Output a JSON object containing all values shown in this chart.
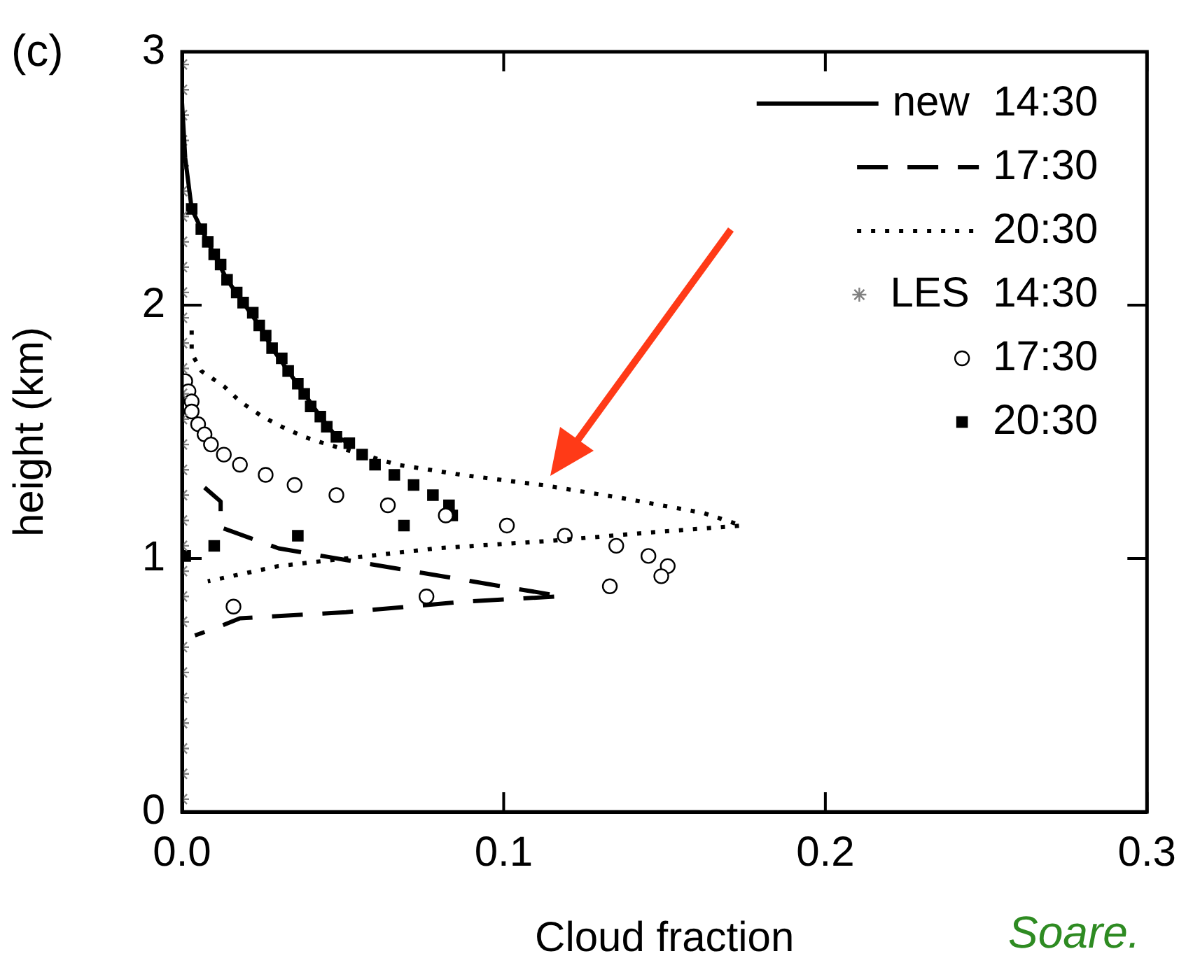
{
  "chart_data": {
    "type": "line",
    "xlabel": "Cloud fraction",
    "ylabel": "height (km)",
    "xlim": [
      0,
      0.3
    ],
    "xticks": [
      {
        "value": 0,
        "label": "0.0"
      },
      0.1,
      0.2,
      0.3
    ],
    "ylim": [
      0,
      3
    ],
    "yticks": [
      0,
      1,
      2,
      3
    ],
    "grid": false,
    "legend": "top right",
    "annotations": [
      "(c)",
      "Soare."
    ],
    "series": [
      {
        "name": "new  14:30",
        "line_style": "solid",
        "marker": "none",
        "color": "#000000",
        "x": [
          0,
          0.001,
          0.003,
          0.006,
          0.01,
          0.014,
          0.019,
          0.024,
          0.028,
          0.033,
          0.038,
          0.043,
          0.048,
          0.052
        ],
        "values": [
          2.8,
          2.58,
          2.38,
          2.3,
          2.2,
          2.1,
          2.01,
          1.92,
          1.83,
          1.74,
          1.65,
          1.56,
          1.48,
          1.455
        ]
      },
      {
        "name": "17:30",
        "line_style": "dashed",
        "marker": "none",
        "color": "#000000",
        "x": [
          0.007,
          0.012,
          0.012,
          0.03,
          0.051,
          0.072,
          0.098,
          0.118,
          0.087,
          0.051,
          0.018,
          0.011,
          0.004
        ],
        "values": [
          1.28,
          1.225,
          1.123,
          1.04,
          0.994,
          0.949,
          0.893,
          0.851,
          0.829,
          0.788,
          0.764,
          0.728,
          0.696
        ]
      },
      {
        "name": "20:30",
        "line_style": "dotted",
        "marker": "none",
        "color": "#000000",
        "x": [
          0.003,
          0.003,
          0.006,
          0.013,
          0.018,
          0.025,
          0.031,
          0.038,
          0.044,
          0.067,
          0.087,
          0.112,
          0.136,
          0.162,
          0.174,
          0.143,
          0.115,
          0.079,
          0.051,
          0.03,
          0.008
        ],
        "values": [
          1.9,
          1.81,
          1.74,
          1.68,
          1.62,
          1.56,
          1.52,
          1.48,
          1.455,
          1.37,
          1.33,
          1.29,
          1.24,
          1.18,
          1.13,
          1.1,
          1.07,
          1.04,
          1.0,
          0.97,
          0.91
        ]
      },
      {
        "name": "LES  14:30",
        "type": "scatter",
        "marker": "cross",
        "color": "#808080",
        "x": [
          0,
          0,
          0,
          0,
          0,
          0,
          0,
          0,
          0,
          0,
          0,
          0,
          0,
          0,
          0,
          0,
          0,
          0,
          0,
          0,
          0,
          0,
          0,
          0,
          0,
          0,
          0,
          0,
          0,
          0
        ],
        "values": [
          0.05,
          0.15,
          0.25,
          0.35,
          0.45,
          0.55,
          0.65,
          0.75,
          0.85,
          0.95,
          1.05,
          1.15,
          1.25,
          1.35,
          1.45,
          1.55,
          1.65,
          1.75,
          1.85,
          1.95,
          2.05,
          2.15,
          2.25,
          2.35,
          2.45,
          2.55,
          2.65,
          2.75,
          2.85,
          2.95
        ]
      },
      {
        "name": "17:30",
        "type": "scatter",
        "marker": "circle",
        "color": "#000000",
        "x": [
          0.001,
          0.002,
          0.003,
          0.003,
          0.005,
          0.007,
          0.009,
          0.013,
          0.018,
          0.026,
          0.035,
          0.048,
          0.064,
          0.082,
          0.101,
          0.119,
          0.135,
          0.145,
          0.151,
          0.149,
          0.133,
          0.076,
          0.016
        ],
        "values": [
          1.7,
          1.66,
          1.62,
          1.58,
          1.53,
          1.49,
          1.45,
          1.41,
          1.37,
          1.33,
          1.29,
          1.25,
          1.21,
          1.17,
          1.13,
          1.09,
          1.05,
          1.01,
          0.97,
          0.93,
          0.89,
          0.85,
          0.81
        ]
      },
      {
        "name": "20:30",
        "type": "scatter",
        "marker": "square",
        "color": "#000000",
        "x": [
          0.003,
          0.006,
          0.008,
          0.01,
          0.012,
          0.014,
          0.017,
          0.019,
          0.022,
          0.024,
          0.026,
          0.028,
          0.031,
          0.033,
          0.036,
          0.038,
          0.04,
          0.043,
          0.045,
          0.048,
          0.052,
          0.056,
          0.06,
          0.066,
          0.072,
          0.078,
          0.083,
          0.084,
          0.069,
          0.036,
          0.01,
          0.001
        ],
        "values": [
          2.38,
          2.3,
          2.25,
          2.2,
          2.16,
          2.1,
          2.05,
          2.01,
          1.97,
          1.92,
          1.88,
          1.83,
          1.79,
          1.74,
          1.69,
          1.65,
          1.6,
          1.56,
          1.52,
          1.48,
          1.455,
          1.41,
          1.37,
          1.33,
          1.29,
          1.25,
          1.21,
          1.17,
          1.13,
          1.09,
          1.05,
          1.01
        ]
      }
    ]
  }
}
